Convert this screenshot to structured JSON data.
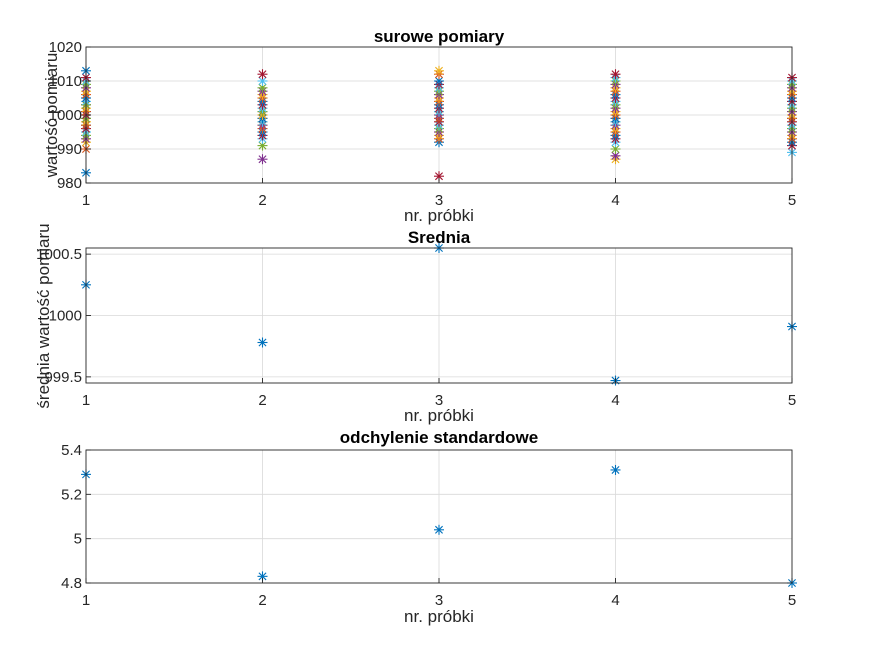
{
  "figure": {
    "background": "#ffffff",
    "grid_color": "#d9d9d9",
    "axis_color": "#262626"
  },
  "chart_data": [
    {
      "type": "scatter",
      "title": "surowe pomiary",
      "xlabel": "nr. próbki",
      "ylabel": "wartość pomiaru",
      "xlim": [
        1,
        5
      ],
      "ylim": [
        980,
        1020
      ],
      "xticks": [
        "1",
        "2",
        "3",
        "4",
        "5"
      ],
      "yticks": [
        "980",
        "990",
        "1000",
        "1010",
        "1020"
      ],
      "grid": true,
      "marker": "asterisk",
      "colors": [
        "#0072bd",
        "#d95319",
        "#edb120",
        "#7e2f8e",
        "#77ac30",
        "#4dbeee",
        "#a2142f"
      ],
      "series": [
        {
          "x": 1,
          "values": [
            983,
            990,
            992,
            993,
            994,
            995,
            996,
            997,
            997,
            998,
            999,
            999,
            1000,
            1000,
            1001,
            1001,
            1002,
            1003,
            1003,
            1004,
            1005,
            1005,
            1006,
            1007,
            1008,
            1009,
            1010,
            1011,
            1013
          ]
        },
        {
          "x": 2,
          "values": [
            987,
            991,
            993,
            994,
            995,
            996,
            997,
            997,
            998,
            998,
            999,
            999,
            1000,
            1000,
            1001,
            1001,
            1002,
            1003,
            1004,
            1005,
            1006,
            1007,
            1008,
            1010,
            1012
          ]
        },
        {
          "x": 3,
          "values": [
            982,
            992,
            993,
            994,
            995,
            996,
            997,
            998,
            999,
            999,
            1000,
            1000,
            1001,
            1001,
            1002,
            1003,
            1004,
            1005,
            1006,
            1007,
            1008,
            1009,
            1010,
            1012,
            1013
          ]
        },
        {
          "x": 4,
          "values": [
            987,
            988,
            990,
            992,
            993,
            994,
            995,
            996,
            997,
            998,
            998,
            999,
            999,
            1000,
            1001,
            1002,
            1003,
            1004,
            1005,
            1006,
            1007,
            1008,
            1009,
            1010,
            1011,
            1012
          ]
        },
        {
          "x": 5,
          "values": [
            989,
            991,
            992,
            993,
            994,
            995,
            996,
            997,
            998,
            999,
            999,
            1000,
            1001,
            1002,
            1003,
            1004,
            1005,
            1006,
            1007,
            1008,
            1009,
            1010,
            1011
          ]
        }
      ]
    },
    {
      "type": "scatter",
      "title": "Srednia",
      "xlabel": "nr. próbki",
      "ylabel": "średnia wartość pomiaru",
      "xlim": [
        1,
        5
      ],
      "ylim": [
        999.45,
        1000.55
      ],
      "xticks": [
        "1",
        "2",
        "3",
        "4",
        "5"
      ],
      "yticks": [
        {
          "v": 999.5,
          "label": "999.5"
        },
        {
          "v": 1000,
          "label": "1000"
        },
        {
          "v": 1000.5,
          "label": "1000.5"
        }
      ],
      "grid": true,
      "marker": "asterisk",
      "color": "#0072bd",
      "x": [
        1,
        2,
        3,
        4,
        5
      ],
      "values": [
        1000.25,
        999.78,
        1000.55,
        999.47,
        999.91
      ]
    },
    {
      "type": "scatter",
      "title": "odchylenie standardowe",
      "xlabel": "nr. próbki",
      "ylabel": "",
      "xlim": [
        1,
        5
      ],
      "ylim": [
        4.8,
        5.4
      ],
      "xticks": [
        "1",
        "2",
        "3",
        "4",
        "5"
      ],
      "yticks": [
        {
          "v": 4.8,
          "label": "4.8"
        },
        {
          "v": 5,
          "label": "5"
        },
        {
          "v": 5.2,
          "label": "5.2"
        },
        {
          "v": 5.4,
          "label": "5.4"
        }
      ],
      "grid": true,
      "marker": "asterisk",
      "color": "#0072bd",
      "x": [
        1,
        2,
        3,
        4,
        5
      ],
      "values": [
        5.29,
        4.83,
        5.04,
        5.31,
        4.8
      ]
    }
  ]
}
